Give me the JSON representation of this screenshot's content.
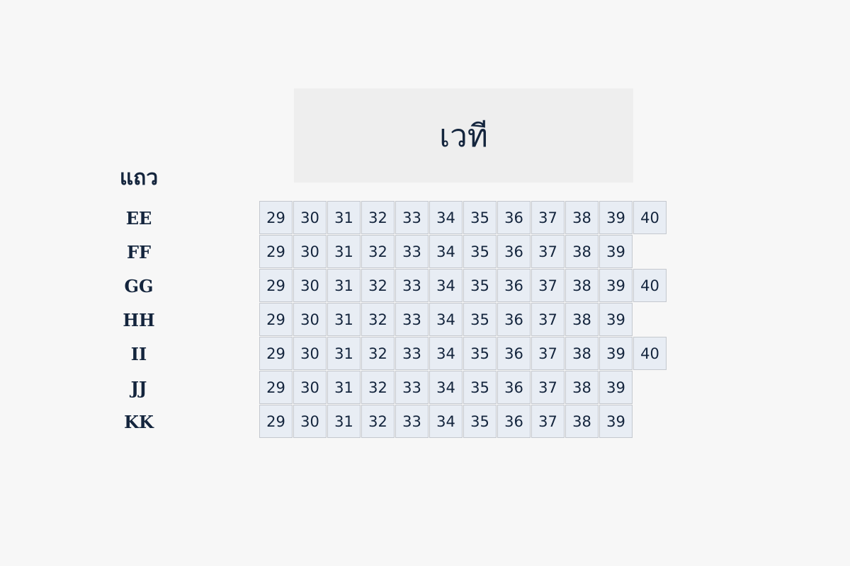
{
  "stage": {
    "label": "เวที"
  },
  "row_header": "แถว",
  "rows": [
    {
      "label": "EE",
      "seats": [
        "29",
        "30",
        "31",
        "32",
        "33",
        "34",
        "35",
        "36",
        "37",
        "38",
        "39",
        "40"
      ]
    },
    {
      "label": "FF",
      "seats": [
        "29",
        "30",
        "31",
        "32",
        "33",
        "34",
        "35",
        "36",
        "37",
        "38",
        "39"
      ]
    },
    {
      "label": "GG",
      "seats": [
        "29",
        "30",
        "31",
        "32",
        "33",
        "34",
        "35",
        "36",
        "37",
        "38",
        "39",
        "40"
      ]
    },
    {
      "label": "HH",
      "seats": [
        "29",
        "30",
        "31",
        "32",
        "33",
        "34",
        "35",
        "36",
        "37",
        "38",
        "39"
      ]
    },
    {
      "label": "II",
      "seats": [
        "29",
        "30",
        "31",
        "32",
        "33",
        "34",
        "35",
        "36",
        "37",
        "38",
        "39",
        "40"
      ]
    },
    {
      "label": "JJ",
      "seats": [
        "29",
        "30",
        "31",
        "32",
        "33",
        "34",
        "35",
        "36",
        "37",
        "38",
        "39"
      ]
    },
    {
      "label": "KK",
      "seats": [
        "29",
        "30",
        "31",
        "32",
        "33",
        "34",
        "35",
        "36",
        "37",
        "38",
        "39"
      ]
    }
  ]
}
